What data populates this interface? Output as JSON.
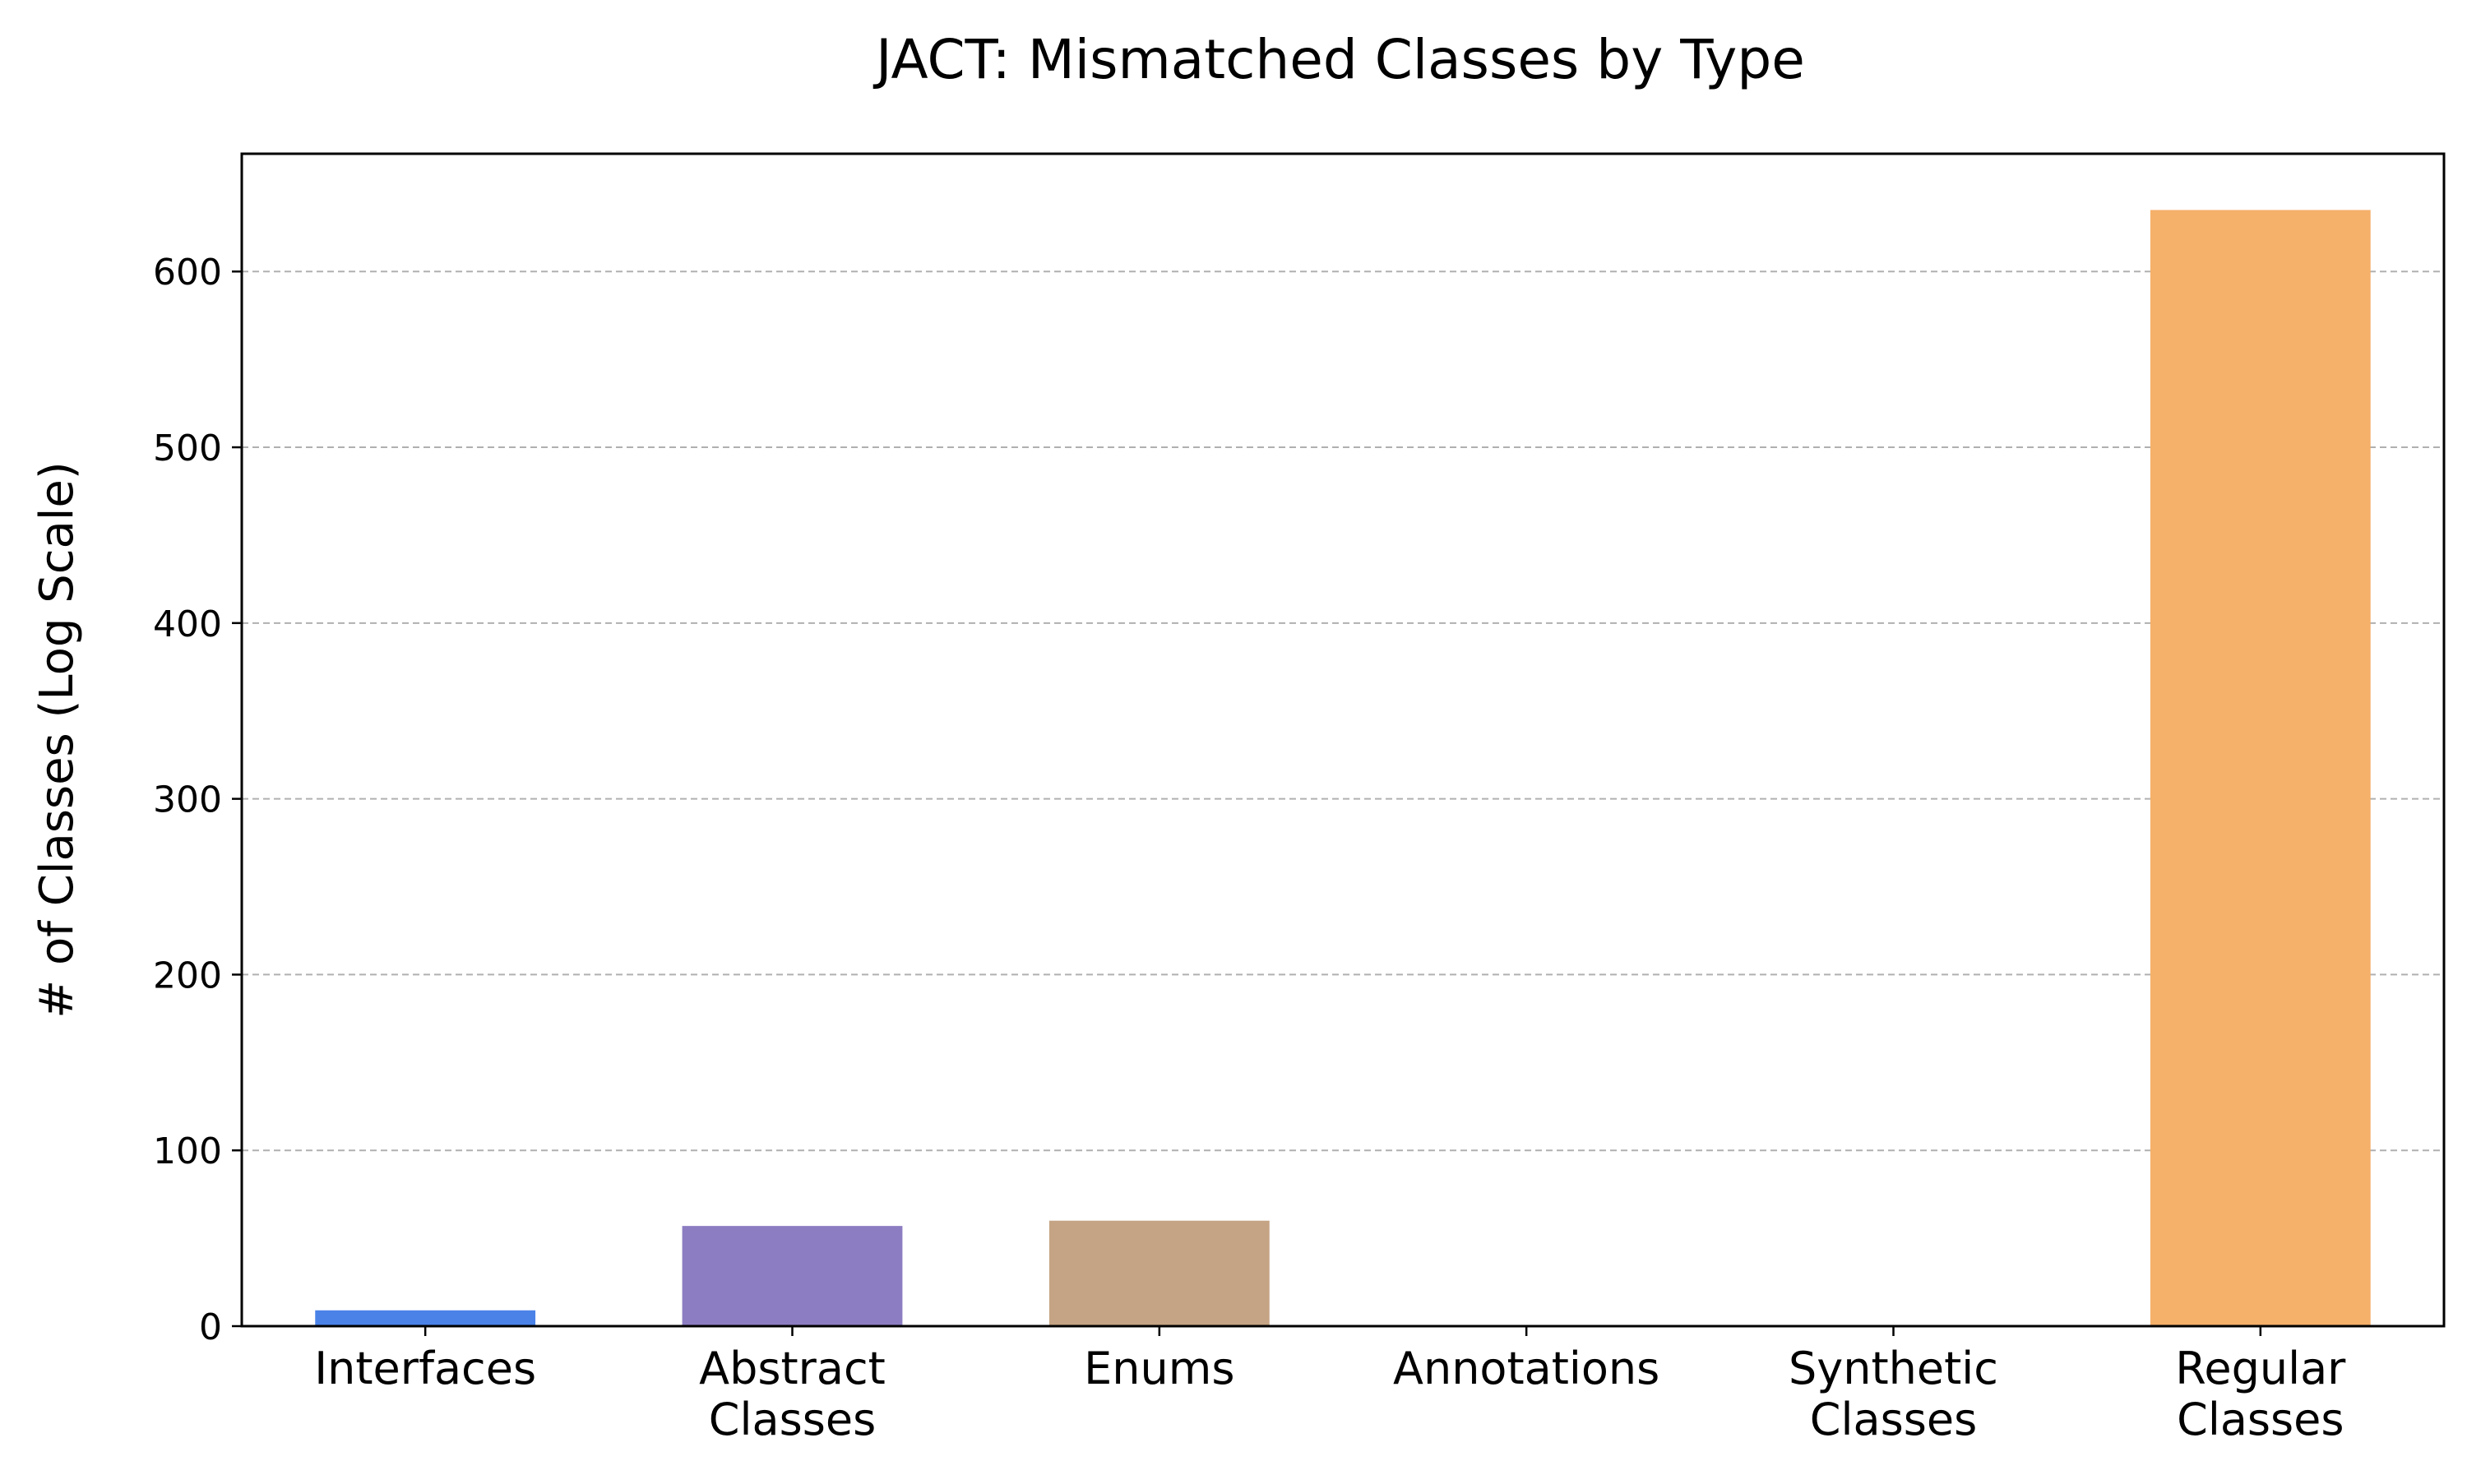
{
  "chart_data": {
    "type": "bar",
    "title": "JACT: Mismatched Classes by Type",
    "xlabel": "",
    "ylabel": "# of Classes (Log Scale)",
    "categories": [
      [
        "Interfaces"
      ],
      [
        "Abstract",
        "Classes"
      ],
      [
        "Enums"
      ],
      [
        "Annotations"
      ],
      [
        "Synthetic",
        "Classes"
      ],
      [
        "Regular",
        "Classes"
      ]
    ],
    "values": [
      9,
      57,
      60,
      0,
      0,
      635
    ],
    "colors": [
      "#4a82e8",
      "#8c7dc2",
      "#c4a484",
      "#4a82e8",
      "#8c7dc2",
      "#f5b06a"
    ],
    "ylim": [
      0,
      667
    ],
    "yticks": [
      0,
      100,
      200,
      300,
      400,
      500,
      600
    ],
    "grid": "y-dashed",
    "legend": "none"
  }
}
